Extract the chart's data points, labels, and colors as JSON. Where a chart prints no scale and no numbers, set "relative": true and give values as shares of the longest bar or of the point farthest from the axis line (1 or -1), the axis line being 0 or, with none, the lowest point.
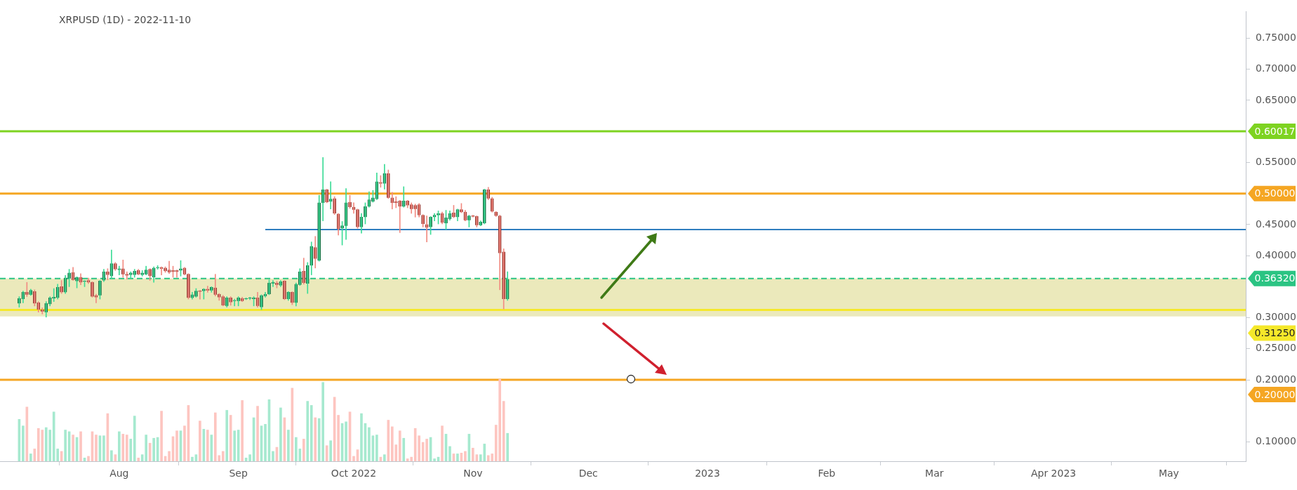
{
  "chart_data": [
    {
      "type": "candlestick",
      "title": "XRPUSD (1D) - 2022-11-10",
      "x": [
        "2022-07-06",
        "2022-07-07",
        "2022-07-08",
        "2022-07-09",
        "2022-07-10",
        "2022-07-11",
        "2022-07-12",
        "2022-07-13",
        "2022-07-14",
        "2022-07-15",
        "2022-07-16",
        "2022-07-17",
        "2022-07-18",
        "2022-07-19",
        "2022-07-20",
        "2022-07-21",
        "2022-07-22",
        "2022-07-23",
        "2022-07-24",
        "2022-07-25",
        "2022-07-26",
        "2022-07-27",
        "2022-07-28",
        "2022-07-29",
        "2022-07-30",
        "2022-07-31",
        "2022-08-01",
        "2022-08-02",
        "2022-08-03",
        "2022-08-04",
        "2022-08-05",
        "2022-08-06",
        "2022-08-07",
        "2022-08-08",
        "2022-08-09",
        "2022-08-10",
        "2022-08-11",
        "2022-08-12",
        "2022-08-13",
        "2022-08-14",
        "2022-08-15",
        "2022-08-16",
        "2022-08-17",
        "2022-08-18",
        "2022-08-19",
        "2022-08-20",
        "2022-08-21",
        "2022-08-22",
        "2022-08-23",
        "2022-08-24",
        "2022-08-25",
        "2022-08-26",
        "2022-08-27",
        "2022-08-28",
        "2022-08-29",
        "2022-08-30",
        "2022-08-31",
        "2022-09-01",
        "2022-09-02",
        "2022-09-03",
        "2022-09-04",
        "2022-09-05",
        "2022-09-06",
        "2022-09-07",
        "2022-09-08",
        "2022-09-09",
        "2022-09-10",
        "2022-09-11",
        "2022-09-12",
        "2022-09-13",
        "2022-09-14",
        "2022-09-15",
        "2022-09-16",
        "2022-09-17",
        "2022-09-18",
        "2022-09-19",
        "2022-09-20",
        "2022-09-21",
        "2022-09-22",
        "2022-09-23",
        "2022-09-24",
        "2022-09-25",
        "2022-09-26",
        "2022-09-27",
        "2022-09-28",
        "2022-09-29",
        "2022-09-30",
        "2022-10-01",
        "2022-10-02",
        "2022-10-03",
        "2022-10-04",
        "2022-10-05",
        "2022-10-06",
        "2022-10-07",
        "2022-10-08",
        "2022-10-09",
        "2022-10-10",
        "2022-10-11",
        "2022-10-12",
        "2022-10-13",
        "2022-10-14",
        "2022-10-15",
        "2022-10-16",
        "2022-10-17",
        "2022-10-18",
        "2022-10-19",
        "2022-10-20",
        "2022-10-21",
        "2022-10-22",
        "2022-10-23",
        "2022-10-24",
        "2022-10-25",
        "2022-10-26",
        "2022-10-27",
        "2022-10-28",
        "2022-10-29",
        "2022-10-30",
        "2022-10-31",
        "2022-11-01",
        "2022-11-02",
        "2022-11-03",
        "2022-11-04",
        "2022-11-05",
        "2022-11-06",
        "2022-11-07",
        "2022-11-08",
        "2022-11-09",
        "2022-11-10"
      ],
      "ohlc": [
        [
          0.323,
          0.334,
          0.317,
          0.331
        ],
        [
          0.33,
          0.343,
          0.324,
          0.341
        ],
        [
          0.341,
          0.357,
          0.334,
          0.337
        ],
        [
          0.337,
          0.346,
          0.336,
          0.344
        ],
        [
          0.342,
          0.345,
          0.319,
          0.323
        ],
        [
          0.324,
          0.326,
          0.309,
          0.313
        ],
        [
          0.313,
          0.316,
          0.306,
          0.31
        ],
        [
          0.309,
          0.326,
          0.301,
          0.323
        ],
        [
          0.322,
          0.334,
          0.319,
          0.332
        ],
        [
          0.331,
          0.347,
          0.326,
          0.333
        ],
        [
          0.332,
          0.354,
          0.33,
          0.349
        ],
        [
          0.35,
          0.36,
          0.339,
          0.341
        ],
        [
          0.341,
          0.368,
          0.339,
          0.364
        ],
        [
          0.363,
          0.378,
          0.35,
          0.372
        ],
        [
          0.373,
          0.381,
          0.36,
          0.361
        ],
        [
          0.359,
          0.366,
          0.348,
          0.365
        ],
        [
          0.365,
          0.371,
          0.353,
          0.357
        ],
        [
          0.358,
          0.36,
          0.35,
          0.359
        ],
        [
          0.36,
          0.364,
          0.355,
          0.357
        ],
        [
          0.357,
          0.358,
          0.333,
          0.334
        ],
        [
          0.336,
          0.338,
          0.324,
          0.333
        ],
        [
          0.336,
          0.36,
          0.33,
          0.359
        ],
        [
          0.36,
          0.378,
          0.358,
          0.374
        ],
        [
          0.374,
          0.379,
          0.361,
          0.369
        ],
        [
          0.367,
          0.409,
          0.363,
          0.387
        ],
        [
          0.387,
          0.389,
          0.376,
          0.378
        ],
        [
          0.377,
          0.383,
          0.369,
          0.379
        ],
        [
          0.379,
          0.393,
          0.365,
          0.37
        ],
        [
          0.37,
          0.374,
          0.362,
          0.368
        ],
        [
          0.369,
          0.374,
          0.363,
          0.372
        ],
        [
          0.369,
          0.378,
          0.365,
          0.375
        ],
        [
          0.376,
          0.378,
          0.369,
          0.37
        ],
        [
          0.369,
          0.376,
          0.367,
          0.372
        ],
        [
          0.37,
          0.383,
          0.369,
          0.377
        ],
        [
          0.378,
          0.379,
          0.36,
          0.367
        ],
        [
          0.365,
          0.382,
          0.357,
          0.38
        ],
        [
          0.38,
          0.384,
          0.378,
          0.381
        ],
        [
          0.381,
          0.382,
          0.369,
          0.379
        ],
        [
          0.38,
          0.382,
          0.373,
          0.375
        ],
        [
          0.377,
          0.391,
          0.371,
          0.373
        ],
        [
          0.376,
          0.383,
          0.365,
          0.374
        ],
        [
          0.376,
          0.377,
          0.365,
          0.374
        ],
        [
          0.376,
          0.392,
          0.367,
          0.379
        ],
        [
          0.38,
          0.381,
          0.369,
          0.37
        ],
        [
          0.37,
          0.371,
          0.33,
          0.332
        ],
        [
          0.332,
          0.341,
          0.33,
          0.337
        ],
        [
          0.334,
          0.347,
          0.333,
          0.343
        ],
        [
          0.343,
          0.344,
          0.33,
          0.342
        ],
        [
          0.343,
          0.347,
          0.33,
          0.346
        ],
        [
          0.346,
          0.351,
          0.341,
          0.344
        ],
        [
          0.344,
          0.35,
          0.341,
          0.349
        ],
        [
          0.348,
          0.37,
          0.335,
          0.337
        ],
        [
          0.338,
          0.339,
          0.328,
          0.333
        ],
        [
          0.334,
          0.336,
          0.319,
          0.32
        ],
        [
          0.319,
          0.334,
          0.317,
          0.332
        ],
        [
          0.332,
          0.334,
          0.32,
          0.325
        ],
        [
          0.327,
          0.33,
          0.319,
          0.328
        ],
        [
          0.327,
          0.334,
          0.319,
          0.332
        ],
        [
          0.331,
          0.333,
          0.326,
          0.327
        ],
        [
          0.33,
          0.332,
          0.329,
          0.331
        ],
        [
          0.331,
          0.333,
          0.329,
          0.332
        ],
        [
          0.33,
          0.334,
          0.319,
          0.332
        ],
        [
          0.332,
          0.341,
          0.317,
          0.319
        ],
        [
          0.317,
          0.337,
          0.313,
          0.336
        ],
        [
          0.335,
          0.341,
          0.333,
          0.338
        ],
        [
          0.338,
          0.361,
          0.337,
          0.356
        ],
        [
          0.355,
          0.36,
          0.35,
          0.357
        ],
        [
          0.356,
          0.359,
          0.348,
          0.353
        ],
        [
          0.352,
          0.36,
          0.35,
          0.358
        ],
        [
          0.359,
          0.36,
          0.329,
          0.33
        ],
        [
          0.33,
          0.342,
          0.328,
          0.341
        ],
        [
          0.341,
          0.342,
          0.321,
          0.324
        ],
        [
          0.324,
          0.356,
          0.319,
          0.354
        ],
        [
          0.353,
          0.379,
          0.352,
          0.374
        ],
        [
          0.375,
          0.396,
          0.354,
          0.356
        ],
        [
          0.355,
          0.389,
          0.339,
          0.384
        ],
        [
          0.384,
          0.422,
          0.369,
          0.415
        ],
        [
          0.413,
          0.431,
          0.38,
          0.395
        ],
        [
          0.392,
          0.497,
          0.391,
          0.485
        ],
        [
          0.485,
          0.558,
          0.456,
          0.506
        ],
        [
          0.506,
          0.507,
          0.485,
          0.486
        ],
        [
          0.487,
          0.519,
          0.475,
          0.491
        ],
        [
          0.492,
          0.495,
          0.466,
          0.468
        ],
        [
          0.467,
          0.468,
          0.433,
          0.443
        ],
        [
          0.444,
          0.455,
          0.417,
          0.448
        ],
        [
          0.448,
          0.508,
          0.426,
          0.485
        ],
        [
          0.486,
          0.497,
          0.476,
          0.478
        ],
        [
          0.478,
          0.485,
          0.468,
          0.474
        ],
        [
          0.474,
          0.475,
          0.444,
          0.446
        ],
        [
          0.446,
          0.468,
          0.436,
          0.462
        ],
        [
          0.462,
          0.485,
          0.451,
          0.479
        ],
        [
          0.479,
          0.503,
          0.478,
          0.49
        ],
        [
          0.487,
          0.505,
          0.486,
          0.493
        ],
        [
          0.491,
          0.533,
          0.49,
          0.519
        ],
        [
          0.518,
          0.529,
          0.51,
          0.516
        ],
        [
          0.516,
          0.547,
          0.507,
          0.532
        ],
        [
          0.532,
          0.538,
          0.492,
          0.493
        ],
        [
          0.493,
          0.502,
          0.475,
          0.485
        ],
        [
          0.487,
          0.495,
          0.477,
          0.485
        ],
        [
          0.488,
          0.489,
          0.437,
          0.479
        ],
        [
          0.479,
          0.511,
          0.478,
          0.488
        ],
        [
          0.488,
          0.489,
          0.477,
          0.481
        ],
        [
          0.482,
          0.485,
          0.468,
          0.475
        ],
        [
          0.481,
          0.483,
          0.462,
          0.475
        ],
        [
          0.482,
          0.484,
          0.462,
          0.465
        ],
        [
          0.465,
          0.466,
          0.446,
          0.451
        ],
        [
          0.45,
          0.464,
          0.422,
          0.445
        ],
        [
          0.446,
          0.463,
          0.434,
          0.462
        ],
        [
          0.462,
          0.468,
          0.456,
          0.465
        ],
        [
          0.465,
          0.472,
          0.451,
          0.468
        ],
        [
          0.468,
          0.47,
          0.451,
          0.453
        ],
        [
          0.452,
          0.473,
          0.442,
          0.461
        ],
        [
          0.459,
          0.472,
          0.457,
          0.468
        ],
        [
          0.469,
          0.481,
          0.461,
          0.462
        ],
        [
          0.462,
          0.475,
          0.456,
          0.474
        ],
        [
          0.474,
          0.484,
          0.469,
          0.47
        ],
        [
          0.47,
          0.473,
          0.456,
          0.457
        ],
        [
          0.457,
          0.465,
          0.446,
          0.464
        ],
        [
          0.464,
          0.465,
          0.462,
          0.463
        ],
        [
          0.463,
          0.464,
          0.446,
          0.449
        ],
        [
          0.449,
          0.456,
          0.448,
          0.454
        ],
        [
          0.452,
          0.507,
          0.451,
          0.506
        ],
        [
          0.506,
          0.51,
          0.49,
          0.492
        ],
        [
          0.492,
          0.494,
          0.47,
          0.471
        ],
        [
          0.47,
          0.471,
          0.463,
          0.464
        ],
        [
          0.464,
          0.465,
          0.345,
          0.404
        ],
        [
          0.406,
          0.411,
          0.314,
          0.33
        ],
        [
          0.33,
          0.374,
          0.328,
          0.362
        ]
      ],
      "xlim": [
        "2022-07-01",
        "2023-05-21"
      ],
      "xticks": [
        {
          "value": "2022-08-01",
          "label": "Aug"
        },
        {
          "value": "2022-09-01",
          "label": "Sep"
        },
        {
          "value": "2022-10-01",
          "label": "Oct 2022"
        },
        {
          "value": "2022-11-01",
          "label": "Nov"
        },
        {
          "value": "2022-12-01",
          "label": "Dec"
        },
        {
          "value": "2023-01-01",
          "label": "2023"
        },
        {
          "value": "2023-02-01",
          "label": "Feb"
        },
        {
          "value": "2023-03-01",
          "label": "Mar"
        },
        {
          "value": "2023-04-01",
          "label": "Apr 2023"
        },
        {
          "value": "2023-05-01",
          "label": "May"
        }
      ],
      "ylim": [
        0.069,
        0.793
      ],
      "yticks": [
        {
          "value": 0.1,
          "label": "0.10000"
        },
        {
          "value": 0.2,
          "label": "0.20000"
        },
        {
          "value": 0.25,
          "label": "0.25000"
        },
        {
          "value": 0.3,
          "label": "0.30000"
        },
        {
          "value": 0.4,
          "label": "0.40000"
        },
        {
          "value": 0.45,
          "label": "0.45000"
        },
        {
          "value": 0.55,
          "label": "0.55000"
        },
        {
          "value": 0.65,
          "label": "0.65000"
        },
        {
          "value": 0.7,
          "label": "0.70000"
        },
        {
          "value": 0.75,
          "label": "0.75000"
        }
      ],
      "series": [
        {
          "type": "line",
          "color": "#2f7ebf",
          "x": [
            "2022-09-08",
            "2023-05-21"
          ],
          "values": [
            0.442,
            0.442
          ]
        }
      ],
      "bands": [
        {
          "axis": "y",
          "from": 0.302,
          "to": 0.3632,
          "color": "#ebe9bb"
        }
      ],
      "ref_lines": [
        {
          "axis": "y",
          "value": 0.60017,
          "label": "0.60017",
          "color": "#7ed321"
        },
        {
          "axis": "y",
          "value": 0.5,
          "label": "0.50000",
          "color": "#f5a623"
        },
        {
          "axis": "y",
          "value": 0.3632,
          "label": "0.36320",
          "color": "#2bc483",
          "line_style": "dashed"
        },
        {
          "axis": "y",
          "value": 0.3125,
          "label": "0.31250",
          "color": "#f5e82a"
        },
        {
          "axis": "y",
          "value": 0.2,
          "label": "0.20000",
          "color": "#f5a623"
        }
      ]
    },
    {
      "type": "bar",
      "relative": true,
      "tick_labels": false,
      "x": [
        "2022-07-06",
        "2022-07-07",
        "2022-07-08",
        "2022-07-09",
        "2022-07-10",
        "2022-07-11",
        "2022-07-12",
        "2022-07-13",
        "2022-07-14",
        "2022-07-15",
        "2022-07-16",
        "2022-07-17",
        "2022-07-18",
        "2022-07-19",
        "2022-07-20",
        "2022-07-21",
        "2022-07-22",
        "2022-07-23",
        "2022-07-24",
        "2022-07-25",
        "2022-07-26",
        "2022-07-27",
        "2022-07-28",
        "2022-07-29",
        "2022-07-30",
        "2022-07-31",
        "2022-08-01",
        "2022-08-02",
        "2022-08-03",
        "2022-08-04",
        "2022-08-05",
        "2022-08-06",
        "2022-08-07",
        "2022-08-08",
        "2022-08-09",
        "2022-08-10",
        "2022-08-11",
        "2022-08-12",
        "2022-08-13",
        "2022-08-14",
        "2022-08-15",
        "2022-08-16",
        "2022-08-17",
        "2022-08-18",
        "2022-08-19",
        "2022-08-20",
        "2022-08-21",
        "2022-08-22",
        "2022-08-23",
        "2022-08-24",
        "2022-08-25",
        "2022-08-26",
        "2022-08-27",
        "2022-08-28",
        "2022-08-29",
        "2022-08-30",
        "2022-08-31",
        "2022-09-01",
        "2022-09-02",
        "2022-09-03",
        "2022-09-04",
        "2022-09-05",
        "2022-09-06",
        "2022-09-07",
        "2022-09-08",
        "2022-09-09",
        "2022-09-10",
        "2022-09-11",
        "2022-09-12",
        "2022-09-13",
        "2022-09-14",
        "2022-09-15",
        "2022-09-16",
        "2022-09-17",
        "2022-09-18",
        "2022-09-19",
        "2022-09-20",
        "2022-09-21",
        "2022-09-22",
        "2022-09-23",
        "2022-09-24",
        "2022-09-25",
        "2022-09-26",
        "2022-09-27",
        "2022-09-28",
        "2022-09-29",
        "2022-09-30",
        "2022-10-01",
        "2022-10-02",
        "2022-10-03",
        "2022-10-04",
        "2022-10-05",
        "2022-10-06",
        "2022-10-07",
        "2022-10-08",
        "2022-10-09",
        "2022-10-10",
        "2022-10-11",
        "2022-10-12",
        "2022-10-13",
        "2022-10-14",
        "2022-10-15",
        "2022-10-16",
        "2022-10-17",
        "2022-10-18",
        "2022-10-19",
        "2022-10-20",
        "2022-10-21",
        "2022-10-22",
        "2022-10-23",
        "2022-10-24",
        "2022-10-25",
        "2022-10-26",
        "2022-10-27",
        "2022-10-28",
        "2022-10-29",
        "2022-10-30",
        "2022-10-31",
        "2022-11-01",
        "2022-11-02",
        "2022-11-03",
        "2022-11-04",
        "2022-11-05",
        "2022-11-06",
        "2022-11-07",
        "2022-11-08",
        "2022-11-09",
        "2022-11-10"
      ],
      "xlim": [
        "2022-07-01",
        "2023-05-21"
      ],
      "values": [
        0.51,
        0.43,
        0.66,
        0.09,
        0.15,
        0.4,
        0.38,
        0.41,
        0.38,
        0.6,
        0.15,
        0.12,
        0.38,
        0.36,
        0.32,
        0.29,
        0.36,
        0.04,
        0.06,
        0.36,
        0.32,
        0.31,
        0.31,
        0.58,
        0.13,
        0.08,
        0.36,
        0.33,
        0.32,
        0.27,
        0.55,
        0.04,
        0.08,
        0.32,
        0.22,
        0.28,
        0.29,
        0.61,
        0.06,
        0.12,
        0.3,
        0.37,
        0.37,
        0.43,
        0.68,
        0.05,
        0.08,
        0.49,
        0.39,
        0.38,
        0.32,
        0.59,
        0.07,
        0.12,
        0.62,
        0.56,
        0.37,
        0.38,
        0.74,
        0.04,
        0.08,
        0.53,
        0.67,
        0.43,
        0.45,
        0.75,
        0.12,
        0.17,
        0.65,
        0.53,
        0.38,
        0.89,
        0.29,
        0.15,
        0.27,
        0.73,
        0.68,
        0.53,
        0.52,
        0.96,
        0.19,
        0.25,
        0.78,
        0.56,
        0.46,
        0.48,
        0.6,
        0.06,
        0.14,
        0.58,
        0.46,
        0.41,
        0.31,
        0.32,
        0.05,
        0.08,
        0.5,
        0.42,
        0.2,
        0.37,
        0.28,
        0.03,
        0.05,
        0.4,
        0.31,
        0.23,
        0.27,
        0.29,
        0.03,
        0.05,
        0.43,
        0.33,
        0.18,
        0.09,
        0.09,
        0.1,
        0.12,
        0.33,
        0.16,
        0.08,
        0.08,
        0.21,
        0.07,
        0.09,
        0.44,
        1,
        0.73,
        0.34
      ],
      "colors": [
        "#a6e9cf",
        "#a6e9cf",
        "#fdc5c0",
        "#a6e9cf",
        "#fdc5c0",
        "#fdc5c0",
        "#fdc5c0",
        "#a6e9cf",
        "#a6e9cf",
        "#a6e9cf",
        "#a6e9cf",
        "#fdc5c0",
        "#a6e9cf",
        "#a6e9cf",
        "#fdc5c0",
        "#a6e9cf",
        "#fdc5c0",
        "#a6e9cf",
        "#fdc5c0",
        "#fdc5c0",
        "#fdc5c0",
        "#a6e9cf",
        "#a6e9cf",
        "#fdc5c0",
        "#a6e9cf",
        "#fdc5c0",
        "#a6e9cf",
        "#fdc5c0",
        "#fdc5c0",
        "#a6e9cf",
        "#a6e9cf",
        "#fdc5c0",
        "#a6e9cf",
        "#a6e9cf",
        "#fdc5c0",
        "#a6e9cf",
        "#a6e9cf",
        "#fdc5c0",
        "#fdc5c0",
        "#fdc5c0",
        "#fdc5c0",
        "#fdc5c0",
        "#a6e9cf",
        "#fdc5c0",
        "#fdc5c0",
        "#a6e9cf",
        "#a6e9cf",
        "#fdc5c0",
        "#a6e9cf",
        "#fdc5c0",
        "#a6e9cf",
        "#fdc5c0",
        "#fdc5c0",
        "#fdc5c0",
        "#a6e9cf",
        "#fdc5c0",
        "#a6e9cf",
        "#a6e9cf",
        "#fdc5c0",
        "#a6e9cf",
        "#a6e9cf",
        "#a6e9cf",
        "#fdc5c0",
        "#a6e9cf",
        "#a6e9cf",
        "#a6e9cf",
        "#a6e9cf",
        "#fdc5c0",
        "#a6e9cf",
        "#fdc5c0",
        "#a6e9cf",
        "#fdc5c0",
        "#a6e9cf",
        "#a6e9cf",
        "#fdc5c0",
        "#a6e9cf",
        "#a6e9cf",
        "#fdc5c0",
        "#a6e9cf",
        "#a6e9cf",
        "#fdc5c0",
        "#a6e9cf",
        "#fdc5c0",
        "#fdc5c0",
        "#a6e9cf",
        "#a6e9cf",
        "#fdc5c0",
        "#fdc5c0",
        "#fdc5c0",
        "#a6e9cf",
        "#a6e9cf",
        "#a6e9cf",
        "#a6e9cf",
        "#a6e9cf",
        "#fdc5c0",
        "#a6e9cf",
        "#fdc5c0",
        "#fdc5c0",
        "#fdc5c0",
        "#fdc5c0",
        "#a6e9cf",
        "#fdc5c0",
        "#fdc5c0",
        "#fdc5c0",
        "#fdc5c0",
        "#fdc5c0",
        "#fdc5c0",
        "#a6e9cf",
        "#a6e9cf",
        "#a6e9cf",
        "#fdc5c0",
        "#a6e9cf",
        "#a6e9cf",
        "#fdc5c0",
        "#a6e9cf",
        "#fdc5c0",
        "#fdc5c0",
        "#a6e9cf",
        "#fdc5c0",
        "#fdc5c0",
        "#a6e9cf",
        "#a6e9cf",
        "#fdc5c0",
        "#fdc5c0",
        "#fdc5c0",
        "#fdc5c0",
        "#fdc5c0",
        "#a6e9cf"
      ]
    }
  ]
}
